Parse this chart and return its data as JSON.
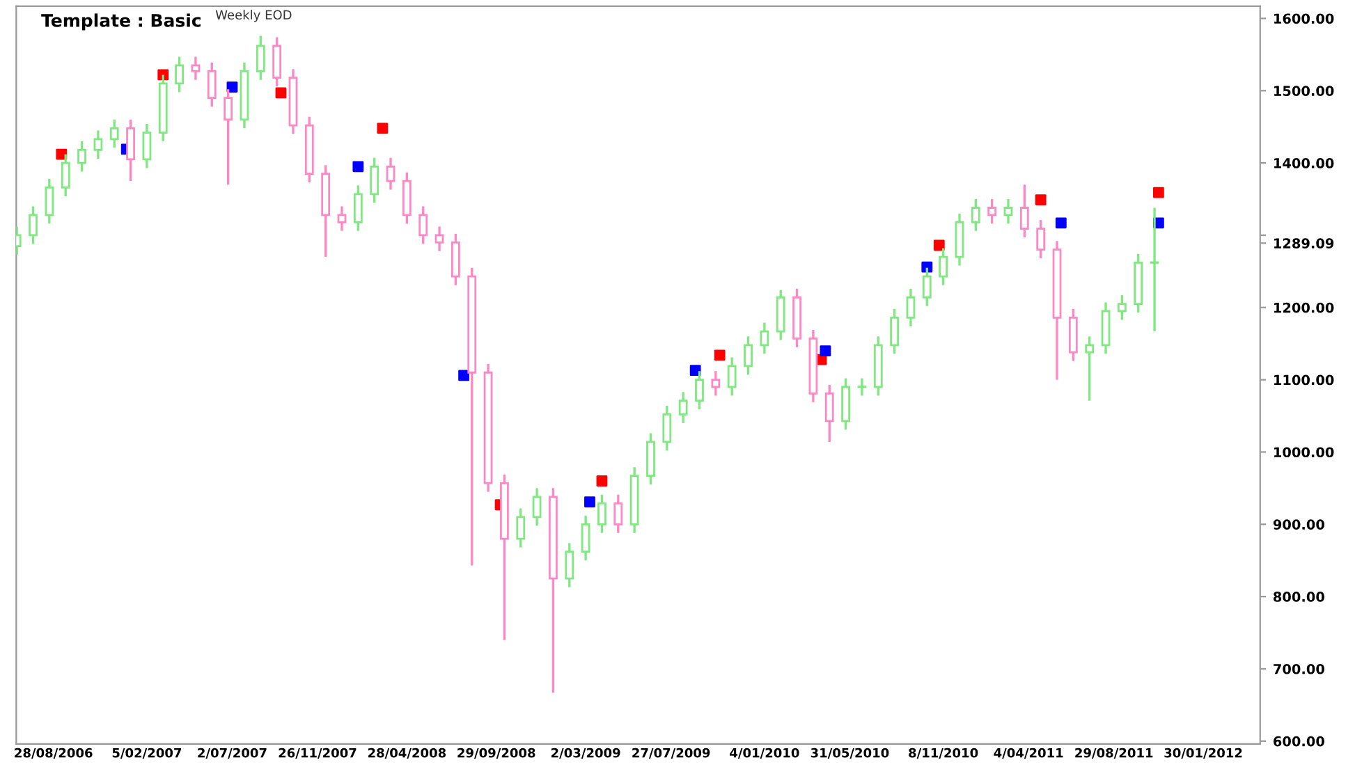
{
  "chart_data": {
    "type": "candlestick",
    "title": "Template : Basic",
    "subtitle": "Weekly EOD",
    "x": [
      "2006-06-26",
      "2006-07-24",
      "2006-08-21",
      "2006-09-18",
      "2006-10-16",
      "2006-11-13",
      "2006-12-11",
      "2007-01-08",
      "2007-02-05",
      "2007-03-05",
      "2007-04-02",
      "2007-04-30",
      "2007-05-28",
      "2007-06-25",
      "2007-07-23",
      "2007-08-20",
      "2007-09-17",
      "2007-10-15",
      "2007-11-12",
      "2007-12-10",
      "2008-01-07",
      "2008-02-04",
      "2008-03-03",
      "2008-03-31",
      "2008-04-28",
      "2008-05-26",
      "2008-06-23",
      "2008-07-21",
      "2008-08-18",
      "2008-09-15",
      "2008-10-13",
      "2008-11-10",
      "2008-12-08",
      "2009-01-05",
      "2009-02-02",
      "2009-03-02",
      "2009-03-30",
      "2009-04-27",
      "2009-05-25",
      "2009-06-22",
      "2009-07-20",
      "2009-08-17",
      "2009-09-14",
      "2009-10-12",
      "2009-11-09",
      "2009-12-07",
      "2010-01-04",
      "2010-02-01",
      "2010-03-01",
      "2010-03-29",
      "2010-04-26",
      "2010-05-24",
      "2010-06-21",
      "2010-07-19",
      "2010-08-16",
      "2010-09-13",
      "2010-10-11",
      "2010-11-08",
      "2010-12-06",
      "2011-01-03",
      "2011-01-31",
      "2011-02-28",
      "2011-03-28",
      "2011-04-25",
      "2011-05-23",
      "2011-06-20",
      "2011-07-18",
      "2011-08-15",
      "2011-09-12",
      "2011-10-10",
      "2011-11-07"
    ],
    "ohlc": [
      [
        1285,
        1312,
        1273,
        1300
      ],
      [
        1300,
        1340,
        1288,
        1328
      ],
      [
        1328,
        1378,
        1316,
        1366
      ],
      [
        1366,
        1412,
        1354,
        1400
      ],
      [
        1400,
        1430,
        1388,
        1418
      ],
      [
        1418,
        1445,
        1406,
        1433
      ],
      [
        1433,
        1460,
        1421,
        1448
      ],
      [
        1448,
        1460,
        1375,
        1405
      ],
      [
        1405,
        1454,
        1393,
        1442
      ],
      [
        1442,
        1522,
        1430,
        1510
      ],
      [
        1510,
        1547,
        1498,
        1535
      ],
      [
        1535,
        1547,
        1515,
        1527
      ],
      [
        1527,
        1539,
        1478,
        1490
      ],
      [
        1490,
        1502,
        1370,
        1460
      ],
      [
        1460,
        1539,
        1448,
        1527
      ],
      [
        1527,
        1576,
        1515,
        1562
      ],
      [
        1562,
        1574,
        1506,
        1518
      ],
      [
        1518,
        1530,
        1440,
        1452
      ],
      [
        1452,
        1464,
        1373,
        1385
      ],
      [
        1385,
        1397,
        1270,
        1328
      ],
      [
        1328,
        1340,
        1306,
        1318
      ],
      [
        1318,
        1369,
        1306,
        1357
      ],
      [
        1357,
        1407,
        1345,
        1395
      ],
      [
        1395,
        1407,
        1363,
        1375
      ],
      [
        1375,
        1387,
        1316,
        1328
      ],
      [
        1328,
        1340,
        1288,
        1300
      ],
      [
        1300,
        1312,
        1278,
        1290
      ],
      [
        1290,
        1302,
        1231,
        1243
      ],
      [
        1243,
        1255,
        843,
        1110
      ],
      [
        1110,
        1122,
        945,
        957
      ],
      [
        957,
        969,
        740,
        880
      ],
      [
        880,
        922,
        868,
        910
      ],
      [
        910,
        950,
        898,
        938
      ],
      [
        938,
        950,
        667,
        825
      ],
      [
        825,
        874,
        813,
        862
      ],
      [
        862,
        912,
        850,
        900
      ],
      [
        900,
        941,
        888,
        929
      ],
      [
        929,
        941,
        888,
        900
      ],
      [
        900,
        979,
        888,
        967
      ],
      [
        967,
        1026,
        955,
        1014
      ],
      [
        1014,
        1064,
        1002,
        1052
      ],
      [
        1052,
        1083,
        1040,
        1071
      ],
      [
        1071,
        1112,
        1059,
        1100
      ],
      [
        1100,
        1112,
        1078,
        1090
      ],
      [
        1090,
        1131,
        1078,
        1119
      ],
      [
        1119,
        1160,
        1107,
        1148
      ],
      [
        1148,
        1179,
        1136,
        1167
      ],
      [
        1167,
        1224,
        1155,
        1214
      ],
      [
        1214,
        1226,
        1145,
        1157
      ],
      [
        1157,
        1169,
        1069,
        1081
      ],
      [
        1081,
        1093,
        1014,
        1043
      ],
      [
        1043,
        1102,
        1031,
        1090
      ],
      [
        1090,
        1102,
        1078,
        1090
      ],
      [
        1090,
        1160,
        1078,
        1148
      ],
      [
        1148,
        1198,
        1136,
        1186
      ],
      [
        1186,
        1226,
        1174,
        1214
      ],
      [
        1214,
        1255,
        1202,
        1243
      ],
      [
        1243,
        1282,
        1231,
        1270
      ],
      [
        1270,
        1330,
        1258,
        1318
      ],
      [
        1318,
        1350,
        1306,
        1338
      ],
      [
        1338,
        1350,
        1316,
        1328
      ],
      [
        1328,
        1350,
        1316,
        1338
      ],
      [
        1338,
        1370,
        1297,
        1309
      ],
      [
        1309,
        1321,
        1268,
        1280
      ],
      [
        1280,
        1292,
        1100,
        1186
      ],
      [
        1186,
        1198,
        1126,
        1138
      ],
      [
        1138,
        1160,
        1071,
        1148
      ],
      [
        1148,
        1207,
        1136,
        1195
      ],
      [
        1195,
        1217,
        1183,
        1205
      ],
      [
        1205,
        1274,
        1193,
        1262
      ],
      [
        1262,
        1338,
        1167,
        1262
      ]
    ],
    "colors": [
      "#80e880",
      "#80e880",
      "#80e880",
      "#80e880",
      "#80e880",
      "#80e880",
      "#80e880",
      "#ff88c4",
      "#80e880",
      "#80e880",
      "#80e880",
      "#ff88c4",
      "#ff88c4",
      "#ff88c4",
      "#80e880",
      "#80e880",
      "#ff88c4",
      "#ff88c4",
      "#ff88c4",
      "#ff88c4",
      "#ff88c4",
      "#80e880",
      "#80e880",
      "#ff88c4",
      "#ff88c4",
      "#ff88c4",
      "#ff88c4",
      "#ff88c4",
      "#ff88c4",
      "#ff88c4",
      "#ff88c4",
      "#80e880",
      "#80e880",
      "#ff88c4",
      "#80e880",
      "#80e880",
      "#80e880",
      "#ff88c4",
      "#80e880",
      "#80e880",
      "#80e880",
      "#80e880",
      "#80e880",
      "#ff88c4",
      "#80e880",
      "#80e880",
      "#80e880",
      "#80e880",
      "#ff88c4",
      "#ff88c4",
      "#ff88c4",
      "#80e880",
      "#80e880",
      "#80e880",
      "#80e880",
      "#80e880",
      "#80e880",
      "#80e880",
      "#80e880",
      "#80e880",
      "#ff88c4",
      "#80e880",
      "#ff88c4",
      "#ff88c4",
      "#ff88c4",
      "#ff88c4",
      "#80e880",
      "#80e880",
      "#80e880",
      "#80e880",
      "#80e880"
    ],
    "series": [
      {
        "type": "scatter",
        "color": "#ff0000",
        "x": [
          "2006-09-11",
          "2007-03-05",
          "2007-09-24",
          "2008-03-17",
          "2008-10-06",
          "2009-03-30",
          "2009-10-19",
          "2010-04-12",
          "2010-11-01",
          "2011-04-25",
          "2011-11-14"
        ],
        "values": [
          1412,
          1522,
          1497,
          1448,
          927,
          960,
          1134,
          1128,
          1286,
          1349,
          1359
        ]
      },
      {
        "type": "scatter",
        "color": "#0000ff",
        "x": [
          "2007-01-01",
          "2007-07-02",
          "2008-02-04",
          "2008-08-04",
          "2009-03-09",
          "2009-09-07",
          "2010-04-19",
          "2010-10-11",
          "2011-05-30",
          "2011-11-14"
        ],
        "values": [
          1419,
          1505,
          1395,
          1106,
          931,
          1113,
          1140,
          1256,
          1317,
          1317
        ]
      }
    ],
    "marker": "square",
    "xlim": [
      "2006-06-25",
      "2012-05-07"
    ],
    "xticks": [
      {
        "value": "2006-08-28",
        "label": "28/08/2006"
      },
      {
        "value": "2007-02-05",
        "label": "5/02/2007"
      },
      {
        "value": "2007-07-02",
        "label": "2/07/2007"
      },
      {
        "value": "2007-11-26",
        "label": "26/11/2007"
      },
      {
        "value": "2008-04-28",
        "label": "28/04/2008"
      },
      {
        "value": "2008-09-29",
        "label": "29/09/2008"
      },
      {
        "value": "2009-03-02",
        "label": "2/03/2009"
      },
      {
        "value": "2009-07-27",
        "label": "27/07/2009"
      },
      {
        "value": "2010-01-04",
        "label": "4/01/2010"
      },
      {
        "value": "2010-05-31",
        "label": "31/05/2010"
      },
      {
        "value": "2010-11-08",
        "label": "8/11/2010"
      },
      {
        "value": "2011-04-04",
        "label": "4/04/2011"
      },
      {
        "value": "2011-08-29",
        "label": "29/08/2011"
      },
      {
        "value": "2012-01-30",
        "label": "30/01/2012"
      }
    ],
    "ylim": [
      596,
      1617
    ],
    "yticks": [
      {
        "value": 600,
        "label": "600.00"
      },
      {
        "value": 700,
        "label": "700.00"
      },
      {
        "value": 800,
        "label": "800.00"
      },
      {
        "value": 900,
        "label": "900.00"
      },
      {
        "value": 1000,
        "label": "1000.00"
      },
      {
        "value": 1100,
        "label": "1100.00"
      },
      {
        "value": 1200,
        "label": "1200.00"
      },
      {
        "value": 1289.09,
        "label": "1289.09"
      },
      {
        "value": 1300,
        "label": null
      },
      {
        "value": 1400,
        "label": "1400.00"
      },
      {
        "value": 1500,
        "label": "1500.00"
      },
      {
        "value": 1600,
        "label": "1600.00"
      }
    ],
    "grid": false,
    "legend": false
  }
}
